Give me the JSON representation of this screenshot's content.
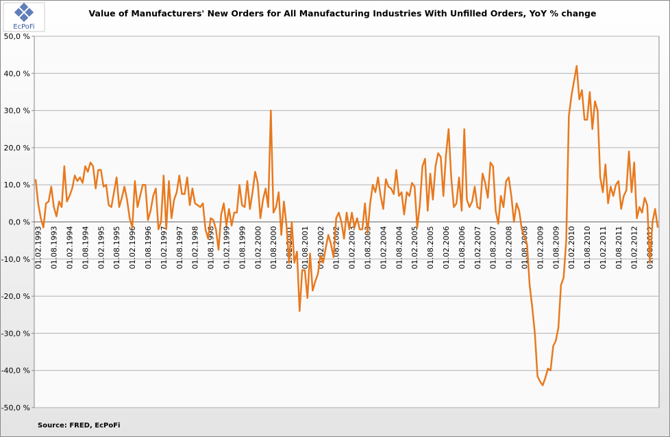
{
  "logo": "EcPoFi",
  "source": "Source: FRED,  EcPoFi",
  "chart_data": {
    "type": "line",
    "title": "Value of Manufacturers' New Orders for All Manufacturing Industries With Unfilled Orders, YoY % change",
    "ylim": [
      -50,
      50
    ],
    "yticks": [
      {
        "value": -50,
        "label": "-50,0 %"
      },
      {
        "value": -40,
        "label": "-40,0 %"
      },
      {
        "value": -30,
        "label": "-30,0 %"
      },
      {
        "value": -20,
        "label": "-20,0 %"
      },
      {
        "value": -10,
        "label": "-10,0 %"
      },
      {
        "value": 0,
        "label": "0,0 %"
      },
      {
        "value": 10,
        "label": "10,0 %"
      },
      {
        "value": 20,
        "label": "20,0 %"
      },
      {
        "value": 30,
        "label": "30,0 %"
      },
      {
        "value": 40,
        "label": "40,0 %"
      },
      {
        "value": 50,
        "label": "50,0 %"
      }
    ],
    "grid": true,
    "categories": [
      null,
      "01.02.1993",
      null,
      null,
      null,
      null,
      null,
      "01.08.1993",
      null,
      null,
      null,
      null,
      null,
      "01.02.1994",
      null,
      null,
      null,
      null,
      null,
      "01.08.1994",
      null,
      null,
      null,
      null,
      null,
      "01.02.1995",
      null,
      null,
      null,
      null,
      null,
      "01.08.1995",
      null,
      null,
      null,
      null,
      null,
      "01.02.1996",
      null,
      null,
      null,
      null,
      null,
      "01.08.1996",
      null,
      null,
      null,
      null,
      null,
      "01.02.1997",
      null,
      null,
      null,
      null,
      null,
      "01.08.1997",
      null,
      null,
      null,
      null,
      null,
      "01.02.1998",
      null,
      null,
      null,
      null,
      null,
      "01.08.1998",
      null,
      null,
      null,
      null,
      null,
      "01.02.1999",
      null,
      null,
      null,
      null,
      null,
      "01.08.1999",
      null,
      null,
      null,
      null,
      null,
      "01.02.2000",
      null,
      null,
      null,
      null,
      null,
      "01.08.2000",
      null,
      null,
      null,
      null,
      null,
      "01.02.2001",
      null,
      null,
      null,
      null,
      null,
      "01.08.2001",
      null,
      null,
      null,
      null,
      null,
      "01.02.2002",
      null,
      null,
      null,
      null,
      null,
      "01.08.2002",
      null,
      null,
      null,
      null,
      null,
      "01.02.2003",
      null,
      null,
      null,
      null,
      null,
      "01.08.2003",
      null,
      null,
      null,
      null,
      null,
      "01.02.2004",
      null,
      null,
      null,
      null,
      null,
      "01.08.2004",
      null,
      null,
      null,
      null,
      null,
      "01.02.2005",
      null,
      null,
      null,
      null,
      null,
      "01.08.2005",
      null,
      null,
      null,
      null,
      null,
      "01.02.2006",
      null,
      null,
      null,
      null,
      null,
      "01.08.2006",
      null,
      null,
      null,
      null,
      null,
      "01.02.2007",
      null,
      null,
      null,
      null,
      null,
      "01.08.2007",
      null,
      null,
      null,
      null,
      null,
      "01.02.2008",
      null,
      null,
      null,
      null,
      null,
      "01.08.2008",
      null,
      null,
      null,
      null,
      null,
      "01.02.2009",
      null,
      null,
      null,
      null,
      null,
      "01.08.2009",
      null,
      null,
      null,
      null,
      null,
      "01.02.2010",
      null,
      null,
      null,
      null,
      null,
      "01.08.2010",
      null,
      null,
      null,
      null,
      null,
      "01.02.2011",
      null,
      null,
      null,
      null,
      null,
      "01.08.2011",
      null,
      null,
      null,
      null,
      null,
      "01.02.2012",
      null,
      null,
      null,
      null,
      null,
      "01.08.2012",
      null,
      null,
      null
    ],
    "series": [
      {
        "color": "#e8791e",
        "values": [
          11.5,
          5,
          1,
          -1.5,
          5,
          5.5,
          9.5,
          4,
          1.5,
          5.5,
          4,
          15,
          5.5,
          7,
          9,
          12.5,
          11,
          12,
          10.5,
          15,
          13.5,
          16,
          15,
          9,
          14,
          14,
          9.5,
          10,
          4.5,
          4,
          8,
          12,
          4,
          6.5,
          9.5,
          6,
          1,
          -1.5,
          11,
          4,
          7,
          10,
          10,
          0.5,
          3,
          7,
          9,
          -2,
          0,
          12.5,
          -2,
          11,
          1,
          6,
          8,
          12.5,
          7.5,
          7.5,
          12,
          4.5,
          9,
          5,
          4.5,
          4,
          5,
          -2,
          -4.5,
          1,
          0.5,
          -2,
          -7.5,
          2,
          5,
          -1,
          3.5,
          -1,
          2.5,
          2.5,
          10,
          4.5,
          4,
          11,
          3.5,
          8,
          13.5,
          10.5,
          1,
          6,
          9,
          4,
          30,
          2.5,
          4,
          8,
          -3.5,
          5.5,
          -1,
          -11,
          0,
          -11,
          -8,
          -24,
          -13,
          -13,
          -20.5,
          -8.5,
          -18.5,
          -16,
          -14,
          -9,
          -11,
          -7,
          -3.5,
          -6,
          -9.5,
          1,
          2.5,
          0,
          -4.5,
          2.5,
          -2,
          2.5,
          -1.5,
          1,
          -2,
          -2,
          5,
          -3,
          5,
          10,
          8,
          12,
          7,
          3.5,
          11.5,
          9.5,
          9,
          7.5,
          14,
          7,
          8,
          2,
          8,
          7,
          10.5,
          9.5,
          -1.5,
          4.5,
          15,
          17,
          3,
          13,
          6,
          15,
          18.5,
          17.5,
          7,
          18,
          25,
          12,
          4,
          5,
          12,
          3,
          25,
          6,
          4,
          5.5,
          9.5,
          4,
          3.5,
          13,
          10.5,
          6.5,
          16,
          15,
          3,
          -0.5,
          7,
          4,
          11,
          12,
          7,
          0,
          5,
          3,
          -2,
          -4,
          -6,
          -17,
          -23,
          -30,
          -41.5,
          -43,
          -44,
          -42,
          -39.5,
          -40,
          -33.5,
          -32,
          -28.5,
          -17,
          -15,
          -5,
          28.5,
          34,
          38,
          42,
          33,
          35.5,
          27.5,
          27.5,
          35,
          25,
          32.5,
          30,
          12,
          8,
          15.5,
          5,
          9.5,
          7,
          10,
          11,
          3.5,
          7,
          8.5,
          19,
          8,
          16,
          1,
          4,
          2.5,
          6.5,
          4.5,
          -11,
          0,
          3.5,
          -1.5
        ]
      }
    ]
  }
}
